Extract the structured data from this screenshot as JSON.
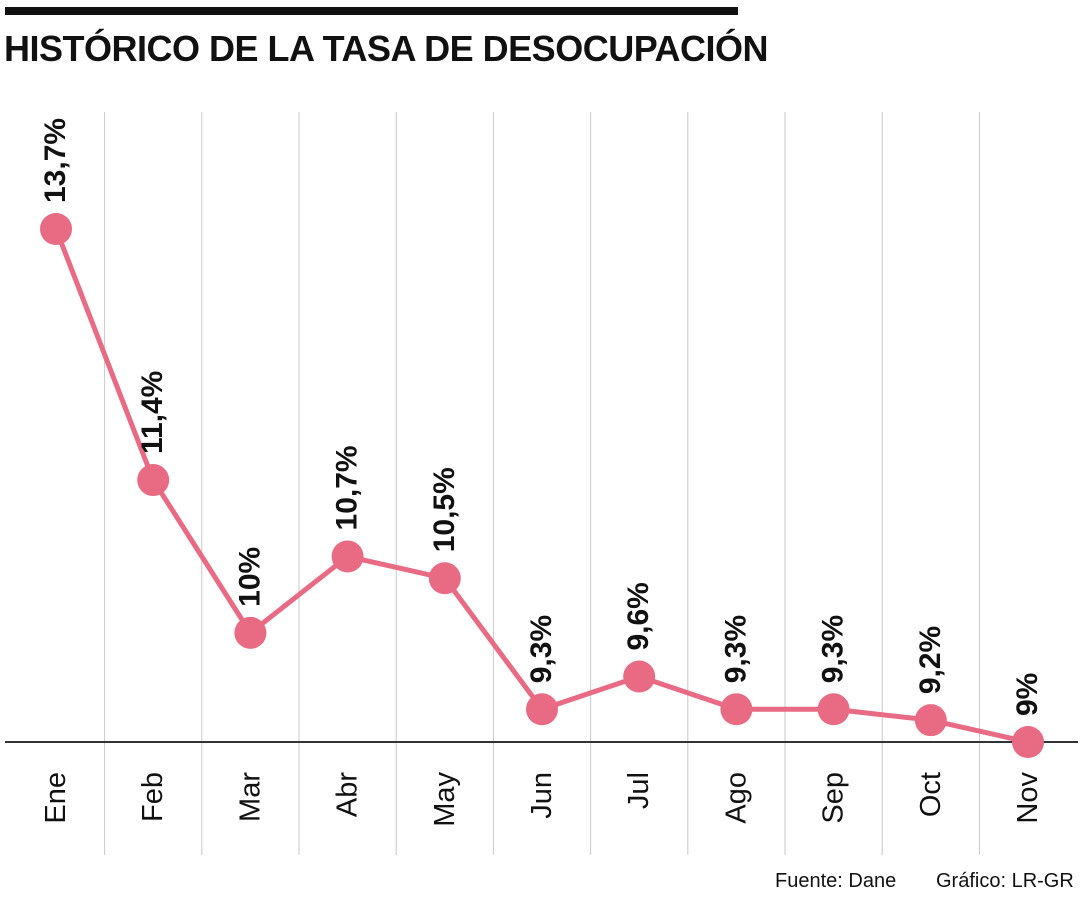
{
  "chart_data": {
    "type": "line",
    "title": "HISTÓRICO DE LA TASA DE DESOCUPACIÓN",
    "xlabel": "",
    "ylabel": "",
    "categories": [
      "Ene",
      "Feb",
      "Mar",
      "Abr",
      "May",
      "Jun",
      "Jul",
      "Ago",
      "Sep",
      "Oct",
      "Nov"
    ],
    "series": [
      {
        "values": [
          13.7,
          11.4,
          10,
          10.7,
          10.5,
          9.3,
          9.6,
          9.3,
          9.3,
          9.2,
          9
        ],
        "labels": [
          "13,7%",
          "11,4%",
          "10%",
          "10,7%",
          "10,5%",
          "9,3%",
          "9,6%",
          "9,3%",
          "9,3%",
          "9,2%",
          "9%"
        ]
      }
    ],
    "ylim": [
      9,
      13.7
    ],
    "grid": "vertical",
    "legend": "none",
    "colors": {
      "line": "#e86a83",
      "grid": "#c8c8c8",
      "baseline": "#333333",
      "text": "#111111"
    }
  },
  "footer": {
    "source": "Fuente: Dane",
    "graphic": "Gráfico: LR-GR"
  }
}
